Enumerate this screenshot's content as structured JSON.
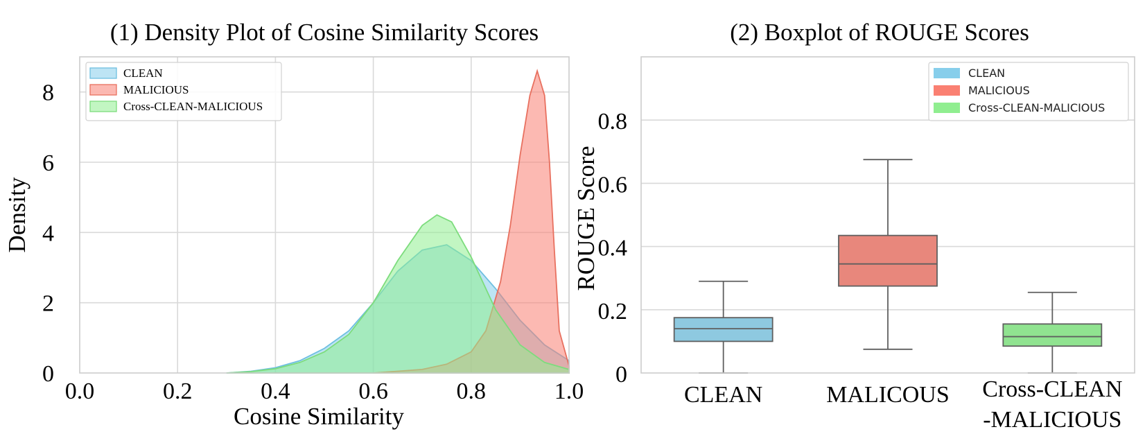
{
  "chart_data": [
    {
      "type": "area",
      "title": "(1) Density Plot of Cosine Similarity Scores",
      "xlabel": "Cosine Similarity",
      "ylabel": "Density",
      "xlim": [
        0.0,
        1.0
      ],
      "ylim": [
        0,
        9
      ],
      "xticks": [
        "0.0",
        "0.2",
        "0.4",
        "0.6",
        "0.8",
        "1.0"
      ],
      "yticks": [
        "0",
        "2",
        "4",
        "6",
        "8"
      ],
      "grid": true,
      "legend_position": "top-left",
      "series": [
        {
          "name": "CLEAN",
          "color": "#87ceeb",
          "edge": "#6ebfe0",
          "x": [
            0.3,
            0.35,
            0.4,
            0.45,
            0.5,
            0.55,
            0.6,
            0.65,
            0.7,
            0.75,
            0.8,
            0.85,
            0.9,
            0.95,
            1.0
          ],
          "y": [
            0.0,
            0.05,
            0.15,
            0.35,
            0.7,
            1.2,
            2.0,
            2.9,
            3.5,
            3.65,
            3.2,
            2.4,
            1.5,
            0.8,
            0.35
          ]
        },
        {
          "name": "MALICIOUS",
          "color": "#fa8072",
          "edge": "#e8705f",
          "x": [
            0.6,
            0.65,
            0.7,
            0.75,
            0.8,
            0.83,
            0.86,
            0.88,
            0.9,
            0.92,
            0.935,
            0.95,
            0.96,
            0.97,
            0.98,
            1.0
          ],
          "y": [
            0.0,
            0.05,
            0.1,
            0.25,
            0.6,
            1.2,
            2.6,
            4.2,
            6.2,
            7.9,
            8.6,
            7.9,
            6.0,
            3.5,
            1.2,
            0.2
          ]
        },
        {
          "name": "Cross-CLEAN-MALICIOUS",
          "color": "#90ee90",
          "edge": "#7ddc7d",
          "x": [
            0.3,
            0.35,
            0.4,
            0.45,
            0.5,
            0.55,
            0.6,
            0.65,
            0.7,
            0.73,
            0.76,
            0.8,
            0.85,
            0.9,
            0.95,
            1.0
          ],
          "y": [
            0.0,
            0.04,
            0.12,
            0.3,
            0.6,
            1.1,
            2.0,
            3.2,
            4.2,
            4.5,
            4.3,
            3.3,
            1.8,
            0.8,
            0.3,
            0.1
          ]
        }
      ]
    },
    {
      "type": "box",
      "title": "(2) Boxplot of ROUGE Scores",
      "xlabel": "",
      "ylabel": "ROUGE Score",
      "ylim": [
        0,
        1.0
      ],
      "yticks": [
        "0",
        "0.2",
        "0.4",
        "0.6",
        "0.8"
      ],
      "grid": true,
      "legend_position": "top-right",
      "categories": [
        "CLEAN",
        "MALICOUS",
        "Cross-CLEAN\n-MALICIOUS"
      ],
      "category_lines": [
        [
          "CLEAN"
        ],
        [
          "MALICOUS"
        ],
        [
          "Cross-CLEAN",
          "-MALICIOUS"
        ]
      ],
      "series": [
        {
          "name": "CLEAN",
          "color": "#87ceeb",
          "whisker_low": 0.0,
          "q1": 0.1,
          "median": 0.14,
          "q3": 0.175,
          "whisker_high": 0.29
        },
        {
          "name": "MALICIOUS",
          "color": "#fa8072",
          "whisker_low": 0.075,
          "q1": 0.275,
          "median": 0.345,
          "q3": 0.435,
          "whisker_high": 0.675
        },
        {
          "name": "Cross-CLEAN-MALICIOUS",
          "color": "#90ee90",
          "whisker_low": 0.0,
          "q1": 0.085,
          "median": 0.115,
          "q3": 0.155,
          "whisker_high": 0.255
        }
      ]
    }
  ]
}
